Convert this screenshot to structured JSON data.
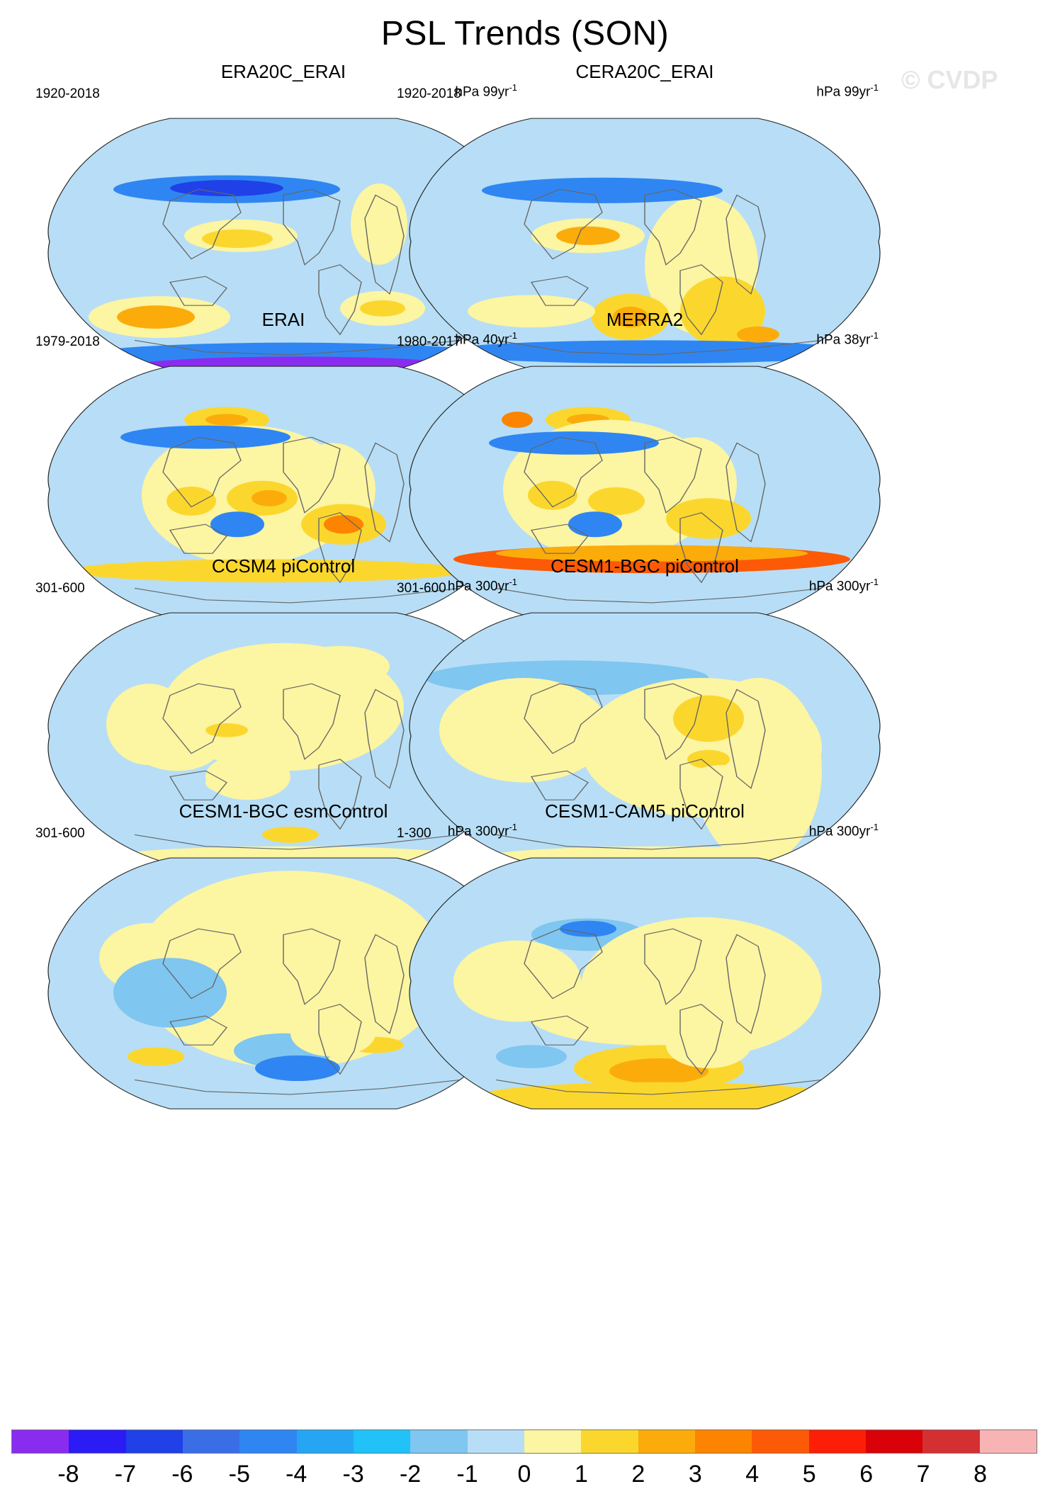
{
  "figure": {
    "title": "PSL Trends (SON)",
    "watermark": "© CVDP"
  },
  "panels": [
    {
      "title": "ERA20C_ERAI",
      "period": "1920-2018",
      "units_base": "hPa 99yr",
      "units_exp": "-1"
    },
    {
      "title": "CERA20C_ERAI",
      "period": "1920-2018",
      "units_base": "hPa 99yr",
      "units_exp": "-1"
    },
    {
      "title": "ERAI",
      "period": "1979-2018",
      "units_base": "hPa 40yr",
      "units_exp": "-1"
    },
    {
      "title": "MERRA2",
      "period": "1980-2017",
      "units_base": "hPa 38yr",
      "units_exp": "-1"
    },
    {
      "title": "CCSM4 piControl",
      "period": "301-600",
      "units_base": "hPa 300yr",
      "units_exp": "-1"
    },
    {
      "title": "CESM1-BGC piControl",
      "period": "301-600",
      "units_base": "hPa 300yr",
      "units_exp": "-1"
    },
    {
      "title": "CESM1-BGC esmControl",
      "period": "301-600",
      "units_base": "hPa 300yr",
      "units_exp": "-1"
    },
    {
      "title": "CESM1-CAM5 piControl",
      "period": "1-300",
      "units_base": "hPa 300yr",
      "units_exp": "-1"
    }
  ],
  "colorbar": {
    "labels": [
      "-8",
      "-7",
      "-6",
      "-5",
      "-4",
      "-3",
      "-2",
      "-1",
      "0",
      "1",
      "2",
      "3",
      "4",
      "5",
      "6",
      "7",
      "8"
    ],
    "colors": [
      "#8a2cf0",
      "#2b1cf5",
      "#2040e8",
      "#3a6ee6",
      "#2f86f2",
      "#26a6f2",
      "#20c2f7",
      "#7fc6f0",
      "#b7def6",
      "#fcf5a2",
      "#fbd72e",
      "#fbac0b",
      "#fc8400",
      "#fc5a06",
      "#fc1e06",
      "#d80208",
      "#d43032",
      "#f8b4b4"
    ]
  },
  "chart_data": {
    "type": "map-contour",
    "variable": "PSL",
    "season": "SON",
    "projection": "Robinson (Pacific-centered)",
    "levels": [
      -8,
      -7,
      -6,
      -5,
      -4,
      -3,
      -2,
      -1,
      0,
      1,
      2,
      3,
      4,
      5,
      6,
      7,
      8
    ],
    "units": "hPa per period"
  }
}
